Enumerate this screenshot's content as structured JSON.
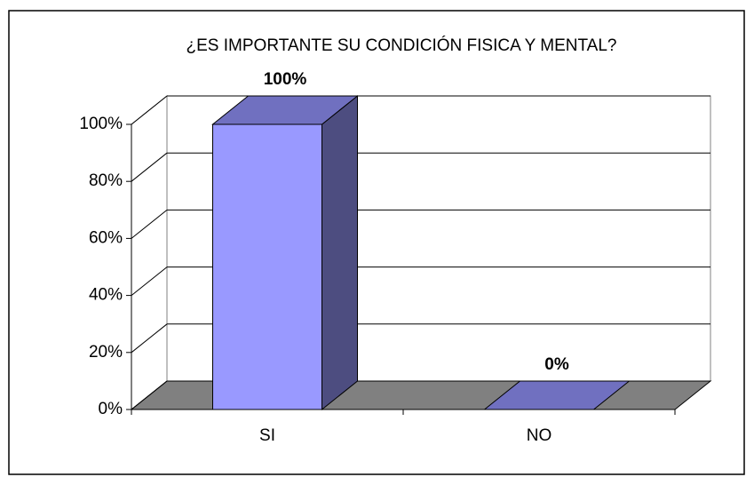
{
  "chart_data": {
    "type": "bar3d",
    "title": "¿ES IMPORTANTE SU CONDICIÓN FISICA Y MENTAL?",
    "categories": [
      "SI",
      "NO"
    ],
    "values": [
      100,
      0
    ],
    "value_labels": [
      "100%",
      "0%"
    ],
    "color": "#9999ff",
    "ylim": [
      0,
      100
    ],
    "yticks": [
      {
        "value": 0,
        "label": "0%"
      },
      {
        "value": 20,
        "label": "20%"
      },
      {
        "value": 40,
        "label": "40%"
      },
      {
        "value": 60,
        "label": "60%"
      },
      {
        "value": 80,
        "label": "80%"
      },
      {
        "value": 100,
        "label": "100%"
      }
    ],
    "grid": true
  }
}
